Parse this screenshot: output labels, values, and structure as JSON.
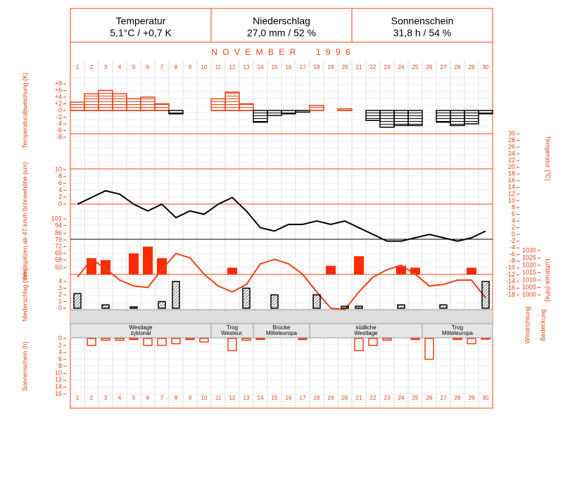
{
  "header": {
    "cells": [
      {
        "title": "Temperatur",
        "value": "5,1°C / +0,7 K"
      },
      {
        "title": "Niederschlag",
        "value": "27,0 mm / 52 %"
      },
      {
        "title": "Sonnenschein",
        "value": "31,8 h / 54 %"
      }
    ]
  },
  "month_title": "N O V E M B E R     1 9 9 6",
  "days": [
    "1",
    "2",
    "3",
    "4",
    "5",
    "6",
    "7",
    "8",
    "9",
    "10",
    "11",
    "12",
    "13",
    "14",
    "15",
    "16",
    "17",
    "18",
    "19",
    "20",
    "21",
    "22",
    "23",
    "24",
    "25",
    "26",
    "27",
    "28",
    "29",
    "30"
  ],
  "chart_data": [
    {
      "type": "step-bar",
      "y_label": "Temperaturabweichung (K)",
      "ylim": [
        -8,
        8
      ],
      "yticks": [
        {
          "value": 8,
          "label": "+8"
        },
        {
          "value": 6,
          "label": "+6"
        },
        {
          "value": 4,
          "label": "+4"
        },
        {
          "value": 2,
          "label": "+2"
        },
        0,
        -2,
        -4,
        -6,
        -8
      ],
      "colors": {
        "positive": "#e8431a",
        "negative": "#000000"
      },
      "values": [
        2.5,
        5,
        6,
        5,
        3.5,
        4,
        2,
        -1,
        0,
        0,
        3.5,
        5.5,
        2,
        -3.5,
        -1.5,
        -1,
        -0.5,
        1.5,
        0,
        0.5,
        0,
        -3,
        -5,
        -4.5,
        -4.5,
        0,
        -3.5,
        -4.5,
        -4,
        -1
      ]
    },
    {
      "type": "line",
      "y_label": "Schneehöhe (cm)",
      "ylim": [
        0,
        10
      ],
      "yticks": [
        10,
        8,
        6,
        4,
        2,
        0
      ],
      "y2_label": "Temperatur (°C)",
      "y2lim": [
        -18,
        30
      ],
      "y2ticks": [
        30,
        28,
        26,
        24,
        22,
        20,
        18,
        16,
        14,
        12,
        10,
        8,
        6,
        4,
        2,
        0,
        -2,
        -4,
        -6,
        -8,
        -10,
        -12,
        -14,
        -16,
        -18
      ],
      "series": [
        {
          "color": "#000000",
          "axis": "y2",
          "values": [
            9,
            11,
            13,
            12,
            9,
            7,
            9,
            5,
            7,
            6,
            9,
            11,
            7,
            2,
            1,
            3,
            3,
            4,
            3,
            4,
            2,
            0,
            -2,
            -2,
            -1,
            0,
            -1,
            -2,
            -1,
            1
          ]
        }
      ]
    },
    {
      "type": "bar",
      "y_label": "Windspitzen ab 47 km/h",
      "ylim": [
        43,
        101
      ],
      "yticks": [
        101,
        94,
        86,
        79,
        72,
        65,
        58,
        50
      ],
      "color": "#ff2a00",
      "bar_style": "filled",
      "values": [
        null,
        60,
        58,
        null,
        65,
        72,
        60,
        null,
        null,
        null,
        null,
        50,
        null,
        null,
        null,
        null,
        null,
        null,
        52,
        null,
        62,
        null,
        null,
        52,
        50,
        null,
        null,
        null,
        50,
        null
      ]
    },
    {
      "type": "line",
      "y_label": "Luftdruck (hPa)",
      "y_axis_position": "right",
      "ylim": [
        990,
        1030
      ],
      "yticks": [
        1030,
        1025,
        1020,
        1015,
        1010,
        1005,
        1000
      ],
      "series": [
        {
          "color": "#e8431a",
          "values": [
            1012,
            1024,
            1018,
            1010,
            1006,
            1005,
            1017,
            1028,
            1025,
            1014,
            1006,
            1002,
            1007,
            1021,
            1024,
            1021,
            1014,
            1002,
            991,
            990,
            1002,
            1012,
            1017,
            1020,
            1014,
            1006,
            1007,
            1010,
            1010,
            998
          ]
        }
      ]
    },
    {
      "type": "bar",
      "y_label": "Niederschlag (mm)",
      "ylim": [
        0,
        4
      ],
      "yticks": [
        4,
        3,
        2,
        1,
        0
      ],
      "color": "#000000",
      "bar_style": "hatched",
      "values": [
        2.2,
        0,
        0.5,
        0,
        0.2,
        0,
        1,
        4,
        0,
        0,
        0,
        0,
        3,
        0,
        2,
        0,
        0,
        2,
        0,
        0.3,
        0.3,
        0,
        0,
        0.5,
        0,
        0,
        0.5,
        0,
        0,
        4
      ]
    },
    {
      "type": "bar",
      "y_label": "Sonnenschein (h)",
      "y_inverted": true,
      "ylim": [
        0,
        16
      ],
      "yticks": [
        0,
        2,
        4,
        6,
        8,
        10,
        12,
        14,
        16
      ],
      "color": "#e8431a",
      "bar_style": "outline",
      "values": [
        0,
        2,
        0.5,
        0.5,
        0.3,
        2,
        2,
        1.5,
        0.3,
        1,
        0,
        3.5,
        0.5,
        0.3,
        0,
        0,
        0.3,
        0,
        0,
        0,
        3.5,
        2,
        0.5,
        0,
        0.3,
        6,
        0,
        0.3,
        1.5,
        0.2
      ]
    }
  ],
  "weather_types": [
    {
      "lines": [
        "Westlage",
        "zyklonal"
      ],
      "start": 1,
      "end": 10
    },
    {
      "lines": [
        "Trog",
        "Westeur."
      ],
      "start": 11,
      "end": 13
    },
    {
      "lines": [
        "Brücke",
        "Mitteleuropa"
      ],
      "start": 14,
      "end": 17
    },
    {
      "lines": [
        "südliche",
        "Westlage"
      ],
      "start": 18,
      "end": 25
    },
    {
      "lines": [
        "Trog",
        "Mitteleuropa"
      ],
      "start": 26,
      "end": 30
    }
  ],
  "row_labels": [
    "Windrichtung",
    "Bedeckung"
  ]
}
